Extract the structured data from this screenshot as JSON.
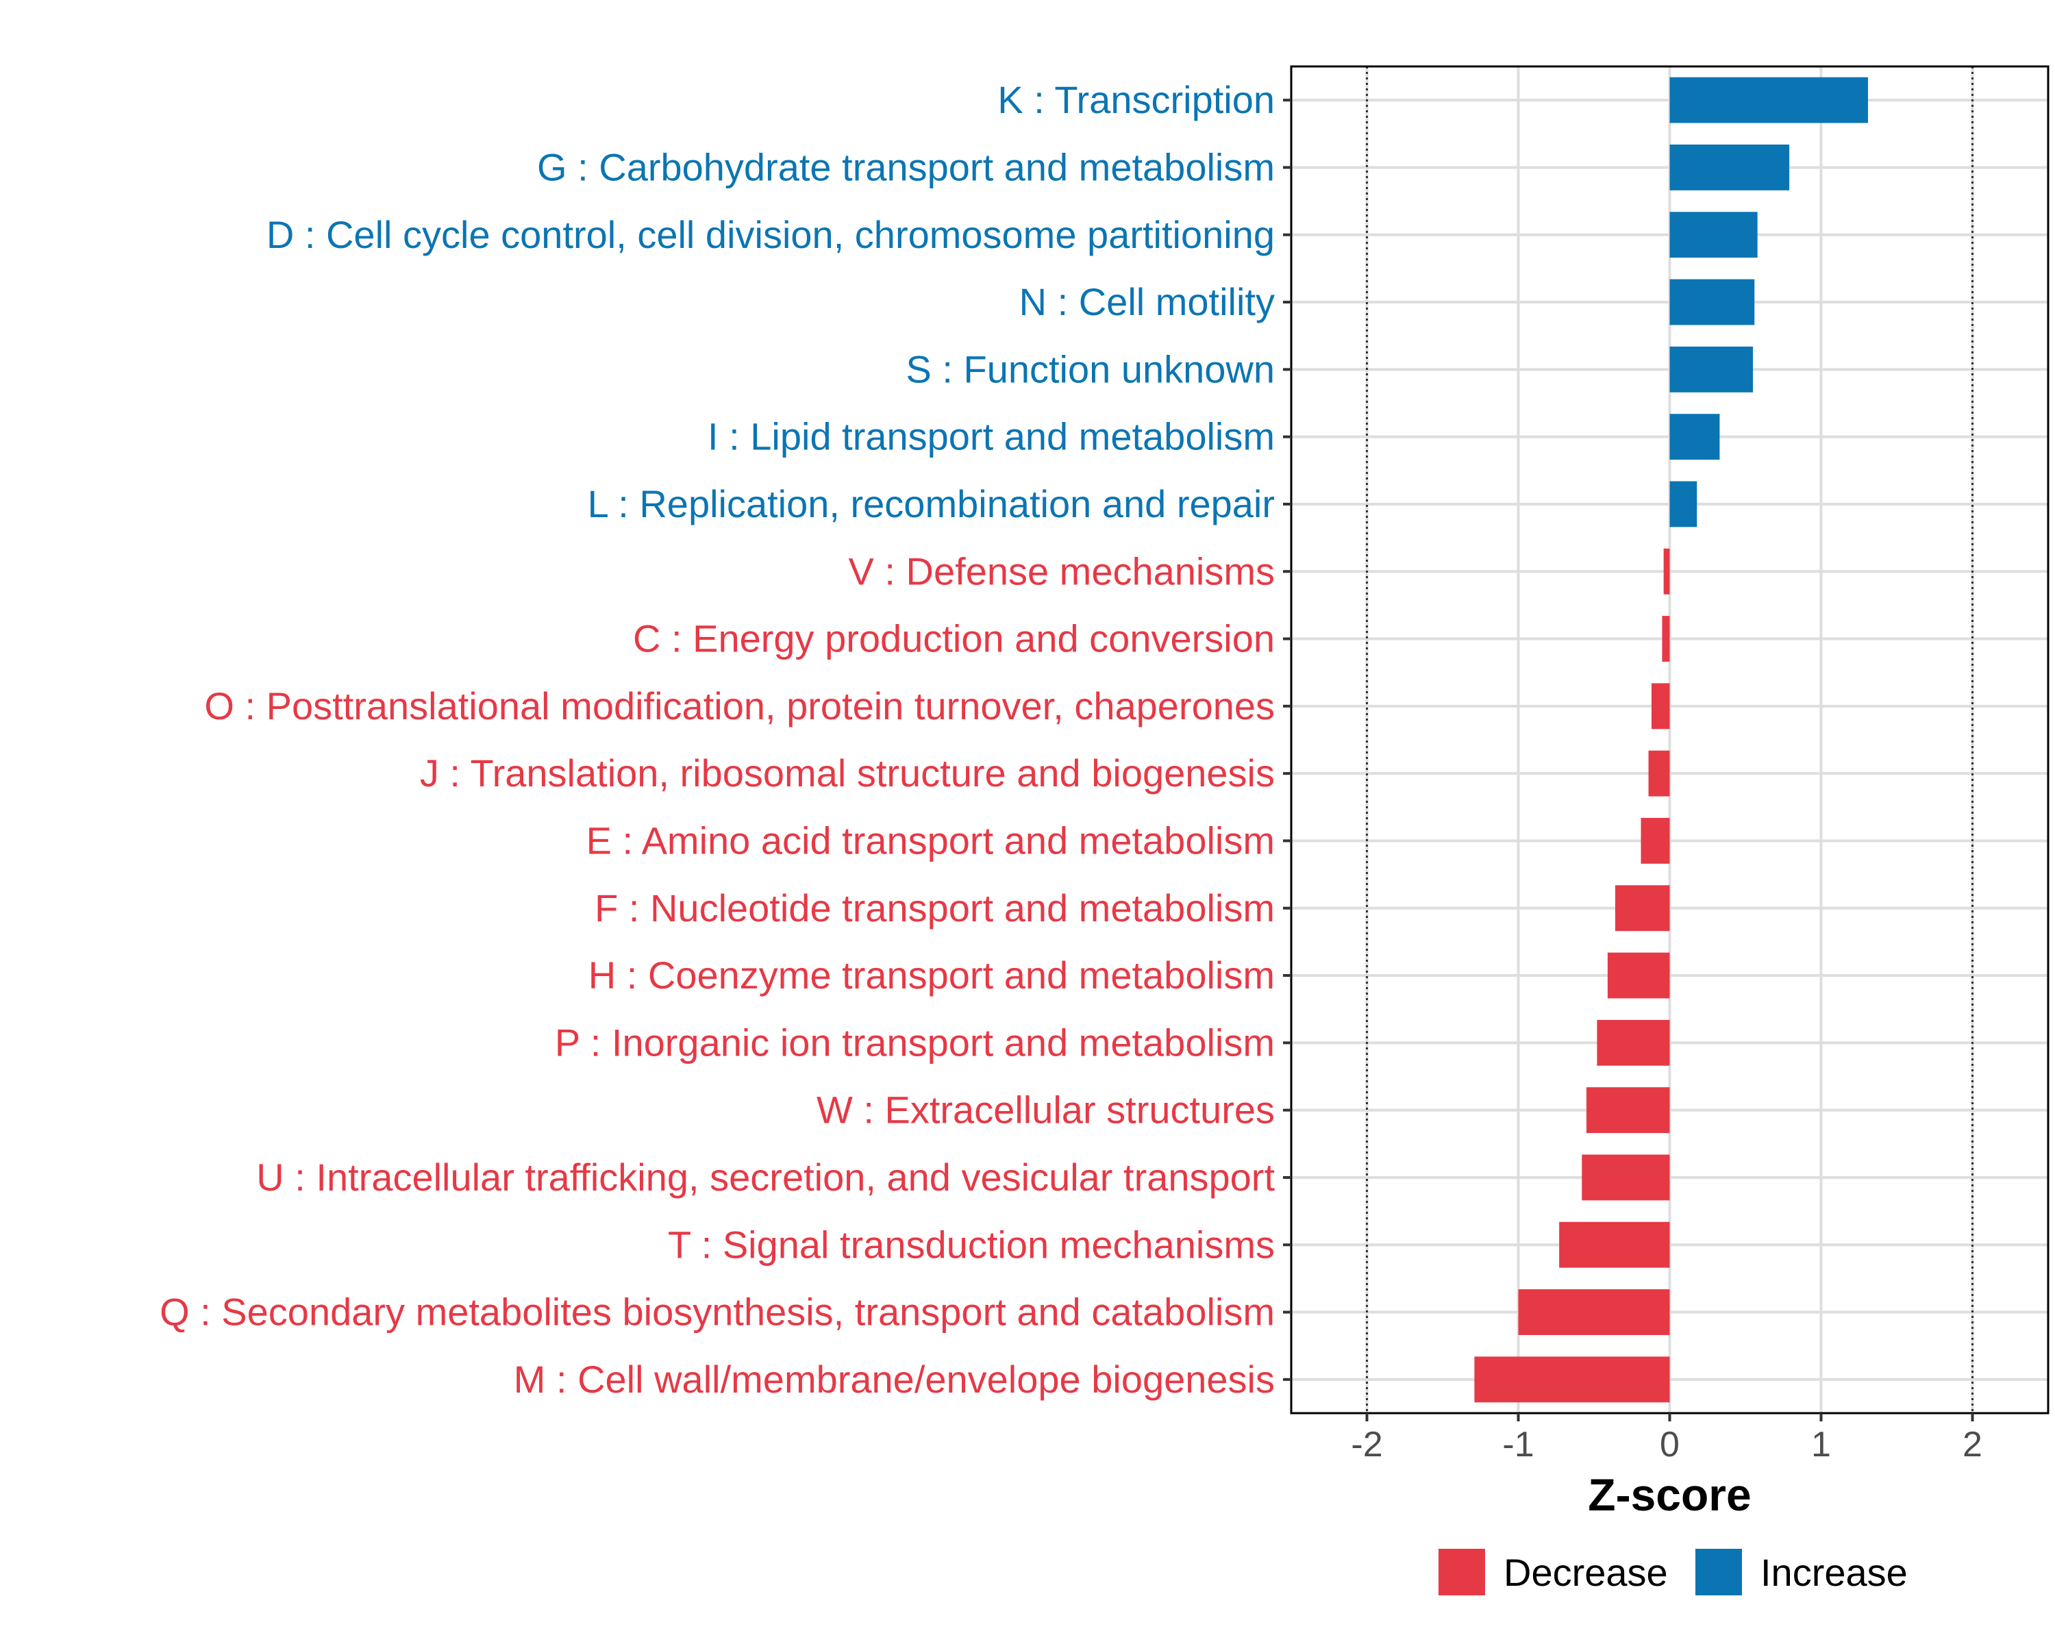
{
  "chart_data": {
    "type": "bar",
    "orientation": "horizontal",
    "title": "",
    "xlabel": "Z-score",
    "ylabel": "",
    "xlim": [
      -2.5,
      2.5
    ],
    "x_ticks": [
      -2,
      -1,
      0,
      1,
      2
    ],
    "x_tick_labels": [
      "-2",
      "-1",
      "0",
      "1",
      "2"
    ],
    "reference_lines": [
      -2,
      2
    ],
    "grid": true,
    "legend_position": "bottom-right",
    "colors": {
      "Decrease": "#e63946",
      "Increase": "#0b75b3"
    },
    "legend": [
      {
        "name": "Decrease",
        "color": "#e63946"
      },
      {
        "name": "Increase",
        "color": "#0b75b3"
      }
    ],
    "categories": [
      "K : Transcription",
      "G : Carbohydrate transport and metabolism",
      "D : Cell cycle control, cell division, chromosome partitioning",
      "N : Cell motility",
      "S : Function unknown",
      "I : Lipid transport and metabolism",
      "L : Replication, recombination and repair",
      "V : Defense mechanisms",
      "C : Energy production and conversion",
      "O : Posttranslational modification, protein turnover, chaperones",
      "J : Translation, ribosomal structure and biogenesis",
      "E : Amino acid transport and metabolism",
      "F : Nucleotide transport and metabolism",
      "H : Coenzyme transport and metabolism",
      "P : Inorganic ion transport and metabolism",
      "W : Extracellular structures",
      "U : Intracellular trafficking, secretion, and vesicular transport",
      "T : Signal transduction mechanisms",
      "Q : Secondary metabolites biosynthesis, transport and catabolism",
      "M : Cell wall/membrane/envelope biogenesis"
    ],
    "values": [
      1.31,
      0.79,
      0.58,
      0.56,
      0.55,
      0.33,
      0.18,
      -0.04,
      -0.05,
      -0.12,
      -0.14,
      -0.19,
      -0.36,
      -0.41,
      -0.48,
      -0.55,
      -0.58,
      -0.73,
      -1.0,
      -1.29
    ],
    "direction": [
      "Increase",
      "Increase",
      "Increase",
      "Increase",
      "Increase",
      "Increase",
      "Increase",
      "Decrease",
      "Decrease",
      "Decrease",
      "Decrease",
      "Decrease",
      "Decrease",
      "Decrease",
      "Decrease",
      "Decrease",
      "Decrease",
      "Decrease",
      "Decrease",
      "Decrease"
    ]
  }
}
